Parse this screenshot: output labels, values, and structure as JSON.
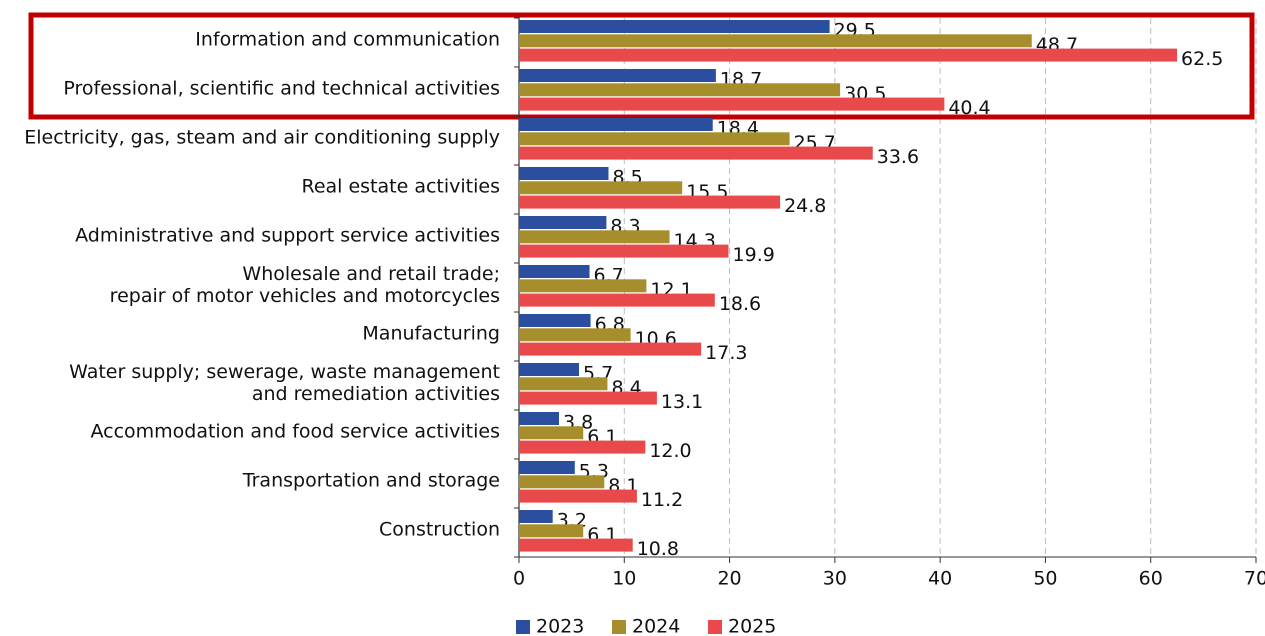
{
  "chart_data": {
    "type": "bar",
    "orientation": "horizontal",
    "categories": [
      "Information and communication",
      "Professional, scientific and technical activities",
      "Electricity, gas, steam and air conditioning supply",
      "Real estate activities",
      "Administrative and support service activities",
      "Wholesale and retail trade;\nrepair of motor vehicles and motorcycles",
      "Manufacturing",
      "Water supply; sewerage, waste management\nand remediation activities",
      "Accommodation and food service activities",
      "Transportation and storage",
      "Construction"
    ],
    "series": [
      {
        "name": "2023",
        "color": "#2b4f9e",
        "values": [
          29.5,
          18.7,
          18.4,
          8.5,
          8.3,
          6.7,
          6.8,
          5.7,
          3.8,
          5.3,
          3.2
        ],
        "value_labels": [
          "29.5",
          "18.7",
          "18.4",
          "8.5",
          "8.3",
          "6.7",
          "6.8",
          "5.7",
          "3.8",
          "5.3",
          "3.2"
        ]
      },
      {
        "name": "2024",
        "color": "#a78e2c",
        "values": [
          48.7,
          30.5,
          25.7,
          15.5,
          14.3,
          12.1,
          10.6,
          8.4,
          6.1,
          8.1,
          6.1
        ],
        "value_labels": [
          "48.7",
          "30.5",
          "25.7",
          "15.5",
          "14.3",
          "12.1",
          "10.6",
          "8.4",
          "6.1",
          "8.1",
          "6.1"
        ]
      },
      {
        "name": "2025",
        "color": "#e84a4b",
        "values": [
          62.5,
          40.4,
          33.6,
          24.8,
          19.9,
          18.6,
          17.3,
          13.1,
          12.0,
          11.2,
          10.8
        ],
        "value_labels": [
          "62.5",
          "40.4",
          "33.6",
          "24.8",
          "19.9",
          "18.6",
          "17.3",
          "13.1",
          "12.0",
          "11.2",
          "10.8"
        ]
      }
    ],
    "xlim": [
      0,
      70
    ],
    "xticks": [
      0,
      10,
      20,
      30,
      40,
      50,
      60,
      70
    ],
    "grid": true,
    "legend": "bottom"
  }
}
